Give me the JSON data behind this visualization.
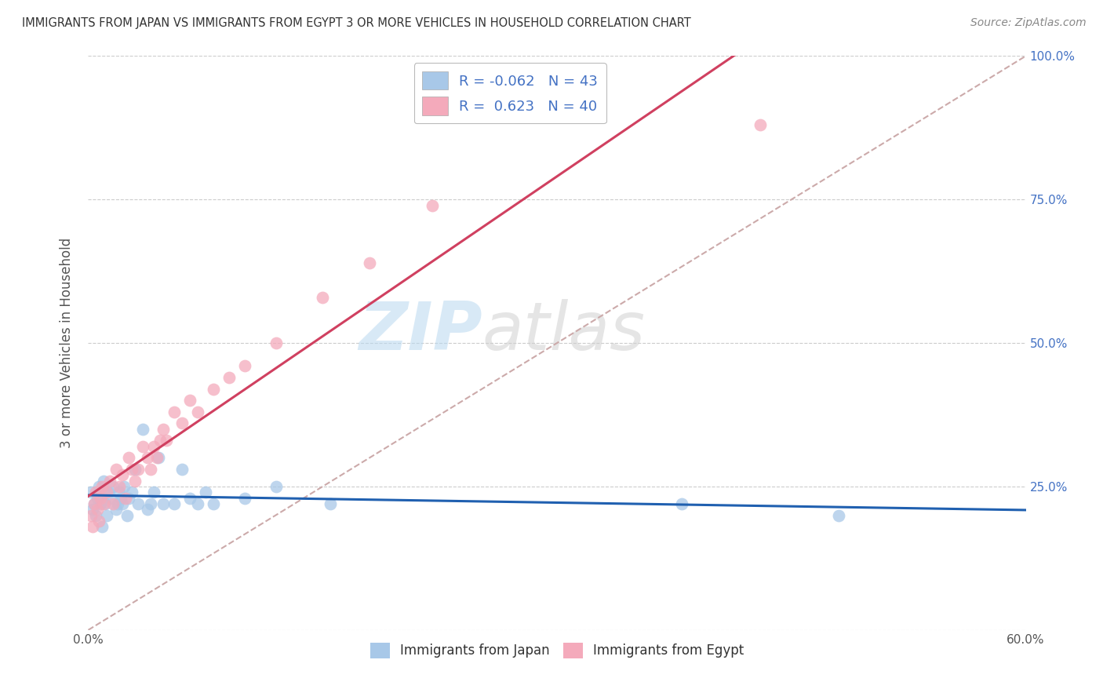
{
  "title": "IMMIGRANTS FROM JAPAN VS IMMIGRANTS FROM EGYPT 3 OR MORE VEHICLES IN HOUSEHOLD CORRELATION CHART",
  "source": "Source: ZipAtlas.com",
  "ylabel": "3 or more Vehicles in Household",
  "xlim": [
    0.0,
    0.6
  ],
  "ylim": [
    0.0,
    1.0
  ],
  "xtick_labels": [
    "0.0%",
    "",
    "",
    "",
    "",
    "",
    "60.0%"
  ],
  "xtick_values": [
    0.0,
    0.1,
    0.2,
    0.3,
    0.4,
    0.5,
    0.6
  ],
  "ytick_labels": [
    "",
    "25.0%",
    "50.0%",
    "75.0%",
    "100.0%"
  ],
  "ytick_values": [
    0.0,
    0.25,
    0.5,
    0.75,
    1.0
  ],
  "japan_color": "#a8c8e8",
  "egypt_color": "#f4aabb",
  "japan_R": -0.062,
  "japan_N": 43,
  "egypt_R": 0.623,
  "egypt_N": 40,
  "japan_line_color": "#2060b0",
  "egypt_line_color": "#d04060",
  "diagonal_line_color": "#ccaaaa",
  "background_color": "#ffffff",
  "watermark_zip": "ZIP",
  "watermark_atlas": "atlas",
  "legend_text_color": "#4472c4",
  "right_tick_color": "#4472c4",
  "japan_x": [
    0.002,
    0.003,
    0.004,
    0.005,
    0.006,
    0.007,
    0.008,
    0.009,
    0.01,
    0.01,
    0.011,
    0.012,
    0.013,
    0.015,
    0.016,
    0.018,
    0.019,
    0.02,
    0.021,
    0.022,
    0.023,
    0.025,
    0.026,
    0.028,
    0.03,
    0.032,
    0.035,
    0.038,
    0.04,
    0.042,
    0.045,
    0.048,
    0.055,
    0.06,
    0.065,
    0.07,
    0.075,
    0.08,
    0.1,
    0.12,
    0.155,
    0.38,
    0.48
  ],
  "japan_y": [
    0.24,
    0.21,
    0.22,
    0.2,
    0.23,
    0.25,
    0.22,
    0.18,
    0.24,
    0.26,
    0.22,
    0.2,
    0.24,
    0.23,
    0.25,
    0.21,
    0.22,
    0.24,
    0.23,
    0.22,
    0.25,
    0.2,
    0.23,
    0.24,
    0.28,
    0.22,
    0.35,
    0.21,
    0.22,
    0.24,
    0.3,
    0.22,
    0.22,
    0.28,
    0.23,
    0.22,
    0.24,
    0.22,
    0.23,
    0.25,
    0.22,
    0.22,
    0.2
  ],
  "egypt_x": [
    0.002,
    0.003,
    0.004,
    0.005,
    0.006,
    0.007,
    0.008,
    0.009,
    0.01,
    0.012,
    0.014,
    0.016,
    0.018,
    0.02,
    0.022,
    0.024,
    0.026,
    0.028,
    0.03,
    0.032,
    0.035,
    0.038,
    0.04,
    0.042,
    0.044,
    0.046,
    0.048,
    0.05,
    0.055,
    0.06,
    0.065,
    0.07,
    0.08,
    0.09,
    0.1,
    0.12,
    0.15,
    0.18,
    0.22,
    0.43
  ],
  "egypt_y": [
    0.2,
    0.18,
    0.22,
    0.24,
    0.21,
    0.19,
    0.23,
    0.25,
    0.22,
    0.24,
    0.26,
    0.22,
    0.28,
    0.25,
    0.27,
    0.23,
    0.3,
    0.28,
    0.26,
    0.28,
    0.32,
    0.3,
    0.28,
    0.32,
    0.3,
    0.33,
    0.35,
    0.33,
    0.38,
    0.36,
    0.4,
    0.38,
    0.42,
    0.44,
    0.46,
    0.5,
    0.58,
    0.64,
    0.74,
    0.88
  ]
}
